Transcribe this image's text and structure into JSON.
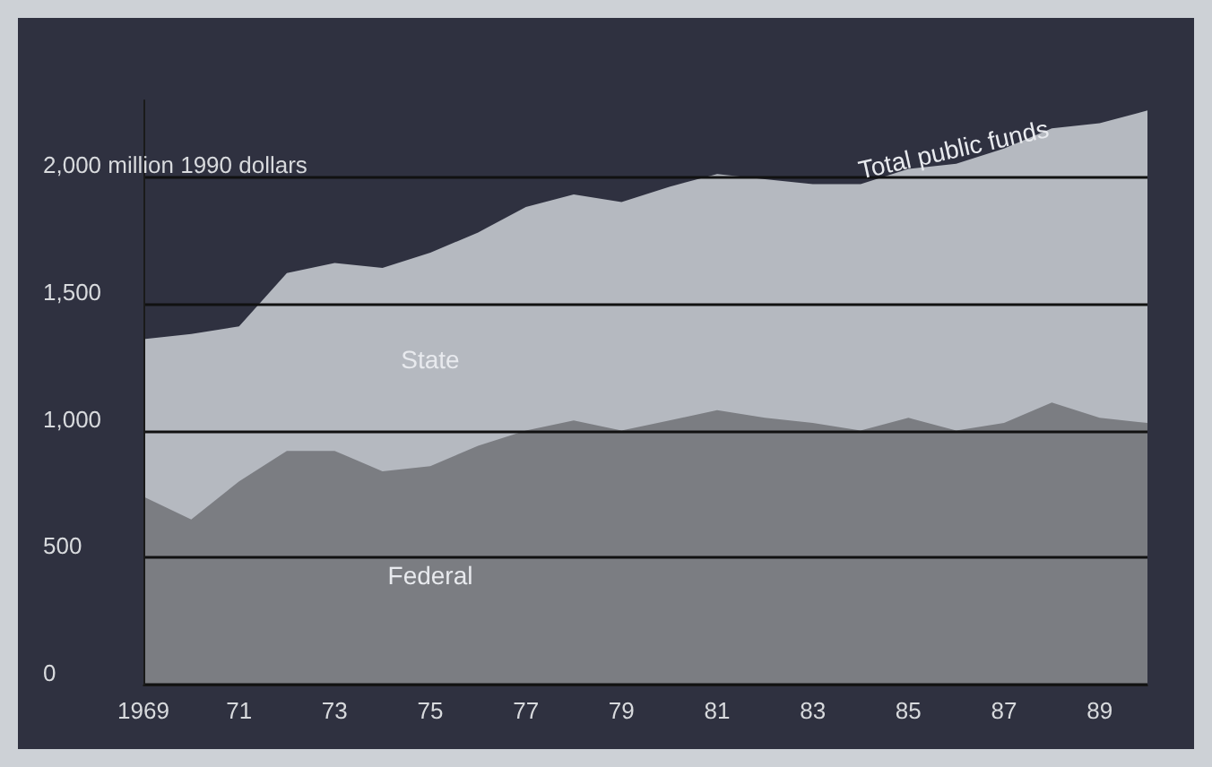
{
  "chart_data": {
    "type": "area",
    "stacked": true,
    "grid": "y",
    "legend": false,
    "x": [
      1969,
      1970,
      1971,
      1972,
      1973,
      1974,
      1975,
      1976,
      1977,
      1978,
      1979,
      1980,
      1981,
      1982,
      1983,
      1984,
      1985,
      1986,
      1987,
      1988,
      1989,
      1990
    ],
    "series": [
      {
        "name": "Federal",
        "color": "#7b7d82",
        "values": [
          740,
          650,
          800,
          920,
          920,
          840,
          860,
          940,
          1000,
          1040,
          1000,
          1040,
          1080,
          1050,
          1030,
          1000,
          1050,
          1000,
          1030,
          1110,
          1050,
          1030
        ]
      },
      {
        "name": "State",
        "color": "#b5b9c0",
        "values": [
          620,
          730,
          610,
          700,
          740,
          800,
          840,
          840,
          880,
          890,
          900,
          920,
          930,
          940,
          940,
          970,
          980,
          1050,
          1080,
          1080,
          1160,
          1230
        ]
      }
    ],
    "xlim": [
      1969,
      1990
    ],
    "xticks": [
      1969,
      {
        "value": 1971,
        "label": "71"
      },
      {
        "value": 1973,
        "label": "73"
      },
      {
        "value": 1975,
        "label": "75"
      },
      {
        "value": 1977,
        "label": "77"
      },
      {
        "value": 1979,
        "label": "79"
      },
      {
        "value": 1981,
        "label": "81"
      },
      {
        "value": 1983,
        "label": "83"
      },
      {
        "value": 1985,
        "label": "85"
      },
      {
        "value": 1987,
        "label": "87"
      },
      {
        "value": 1989,
        "label": "89"
      }
    ],
    "ylim": [
      0,
      2300
    ],
    "yticks": [
      0,
      500,
      {
        "value": 1000,
        "label": "1,000"
      },
      {
        "value": 1500,
        "label": "1,500"
      },
      {
        "value": 2000,
        "label": "2,000 million 1990 dollars"
      }
    ],
    "annotations": [
      {
        "text": "Total public funds",
        "x": 1986,
        "y": 2060
      }
    ]
  }
}
